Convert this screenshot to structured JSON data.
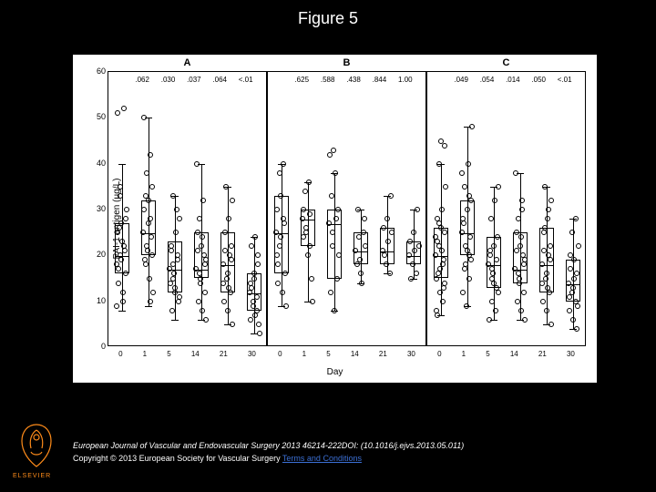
{
  "figure_title": "Figure 5",
  "citation": "European Journal of Vascular and Endovascular Surgery 2013 46214-222DOI: (10.1016/j.ejvs.2013.05.011)",
  "copyright_prefix": "Copyright © 2013 European Society for Vascular Surgery ",
  "terms_text": "Terms and Conditions",
  "publisher": "ELSEVIER",
  "chart": {
    "background_color": "#ffffff",
    "page_bg": "#000000",
    "ylabel": "PAI-1 antigen (µg/L)",
    "xlabel": "Day",
    "ylim": [
      0,
      60
    ],
    "yticks": [
      0,
      10,
      20,
      30,
      40,
      50,
      60
    ],
    "x_categories": [
      "0",
      "1",
      "5",
      "14",
      "21",
      "30"
    ],
    "panels": [
      {
        "label": "A",
        "pvals": [
          ".062",
          ".030",
          ".037",
          ".064",
          "<.01"
        ],
        "boxes": [
          {
            "q1": 16,
            "med": 20,
            "q3": 27,
            "lo": 8,
            "hi": 40
          },
          {
            "q1": 20,
            "med": 25,
            "q3": 32,
            "lo": 9,
            "hi": 50
          },
          {
            "q1": 12,
            "med": 17,
            "q3": 23,
            "lo": 6,
            "hi": 33
          },
          {
            "q1": 15,
            "med": 17,
            "q3": 25,
            "lo": 6,
            "hi": 40
          },
          {
            "q1": 12,
            "med": 18,
            "q3": 25,
            "lo": 5,
            "hi": 35
          },
          {
            "q1": 8,
            "med": 12,
            "q3": 16,
            "lo": 3,
            "hi": 24
          }
        ],
        "points": [
          [
            18,
            20,
            22,
            25,
            27,
            16,
            14,
            12,
            30,
            35,
            52,
            51,
            19,
            21,
            17,
            23,
            28,
            26,
            10,
            9,
            33
          ],
          [
            25,
            22,
            28,
            30,
            32,
            20,
            18,
            15,
            12,
            38,
            42,
            50,
            21,
            24,
            19,
            27,
            35,
            33,
            10
          ],
          [
            17,
            15,
            20,
            22,
            12,
            10,
            8,
            25,
            28,
            33,
            30,
            14,
            16,
            19,
            21,
            13,
            11,
            18
          ],
          [
            17,
            15,
            20,
            25,
            22,
            12,
            10,
            8,
            6,
            28,
            32,
            40,
            14,
            18,
            21,
            24,
            19,
            16
          ],
          [
            18,
            15,
            12,
            10,
            8,
            22,
            25,
            28,
            32,
            35,
            20,
            14,
            16,
            19,
            21,
            13,
            5
          ],
          [
            12,
            10,
            8,
            6,
            15,
            18,
            22,
            24,
            3,
            9,
            11,
            14,
            16,
            20,
            13,
            7,
            5
          ]
        ]
      },
      {
        "label": "B",
        "pvals": [
          ".625",
          ".588",
          ".438",
          ".844",
          "1.00"
        ],
        "boxes": [
          {
            "q1": 16,
            "med": 25,
            "q3": 33,
            "lo": 9,
            "hi": 40
          },
          {
            "q1": 22,
            "med": 28,
            "q3": 30,
            "lo": 10,
            "hi": 36
          },
          {
            "q1": 15,
            "med": 27,
            "q3": 30,
            "lo": 8,
            "hi": 38
          },
          {
            "q1": 18,
            "med": 21,
            "q3": 25,
            "lo": 14,
            "hi": 30
          },
          {
            "q1": 18,
            "med": 21,
            "q3": 26,
            "lo": 16,
            "hi": 33
          },
          {
            "q1": 18,
            "med": 20,
            "q3": 23,
            "lo": 15,
            "hi": 30
          }
        ],
        "points": [
          [
            25,
            22,
            28,
            30,
            33,
            16,
            14,
            12,
            9,
            38,
            40,
            20,
            24,
            27,
            18
          ],
          [
            28,
            25,
            22,
            30,
            20,
            15,
            34,
            36,
            10,
            26,
            29,
            24
          ],
          [
            27,
            25,
            15,
            12,
            8,
            30,
            33,
            38,
            20,
            22,
            28,
            42,
            43
          ],
          [
            21,
            19,
            25,
            18,
            16,
            28,
            30,
            14,
            22,
            24
          ],
          [
            21,
            18,
            16,
            26,
            28,
            33,
            20,
            23,
            25
          ],
          [
            20,
            18,
            16,
            23,
            25,
            30,
            15,
            21,
            22
          ]
        ]
      },
      {
        "label": "C",
        "pvals": [
          ".049",
          ".054",
          ".014",
          ".050",
          "<.01"
        ],
        "boxes": [
          {
            "q1": 15,
            "med": 20,
            "q3": 26,
            "lo": 7,
            "hi": 40
          },
          {
            "q1": 20,
            "med": 25,
            "q3": 32,
            "lo": 9,
            "hi": 48
          },
          {
            "q1": 13,
            "med": 18,
            "q3": 24,
            "lo": 6,
            "hi": 35
          },
          {
            "q1": 14,
            "med": 17,
            "q3": 25,
            "lo": 6,
            "hi": 38
          },
          {
            "q1": 12,
            "med": 18,
            "q3": 26,
            "lo": 5,
            "hi": 35
          },
          {
            "q1": 10,
            "med": 14,
            "q3": 19,
            "lo": 4,
            "hi": 28
          }
        ],
        "points": [
          [
            20,
            22,
            18,
            15,
            12,
            25,
            28,
            30,
            35,
            40,
            10,
            8,
            17,
            19,
            23,
            26,
            14,
            16,
            21,
            24,
            27,
            13,
            7,
            45,
            44
          ],
          [
            25,
            22,
            20,
            28,
            30,
            32,
            35,
            40,
            48,
            18,
            15,
            12,
            9,
            24,
            27,
            21,
            19,
            17,
            33,
            38
          ],
          [
            18,
            15,
            13,
            20,
            22,
            24,
            28,
            32,
            35,
            10,
            8,
            6,
            16,
            19,
            21,
            14,
            12,
            17
          ],
          [
            17,
            15,
            20,
            25,
            22,
            12,
            10,
            8,
            6,
            28,
            32,
            38,
            14,
            18,
            21,
            24,
            19,
            16,
            30
          ],
          [
            18,
            15,
            12,
            10,
            8,
            22,
            25,
            28,
            32,
            35,
            20,
            14,
            16,
            19,
            21,
            13,
            5,
            26,
            30
          ],
          [
            14,
            12,
            10,
            8,
            6,
            4,
            17,
            19,
            22,
            25,
            28,
            11,
            13,
            16,
            20,
            15,
            9
          ]
        ]
      }
    ],
    "box_stroke": "#000000",
    "point_stroke": "#000000",
    "fontsize_axis": 10,
    "fontsize_tick": 9
  }
}
